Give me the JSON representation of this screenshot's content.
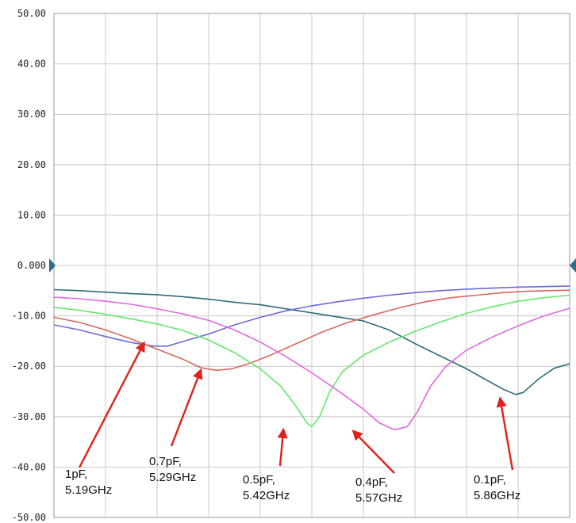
{
  "chart_data": {
    "type": "line",
    "ylim": [
      -50,
      50
    ],
    "xlim": [
      0,
      10
    ],
    "grid": true,
    "y_tick_labels": [
      "50.00",
      "40.00",
      "30.00",
      "20.00",
      "10.00",
      "0.000",
      "-10.00",
      "-20.00",
      "-30.00",
      "-40.00",
      "-50.00"
    ],
    "series": [
      {
        "color": "#2E6B7E",
        "points": [
          [
            0,
            -4.8
          ],
          [
            0.5,
            -5.0
          ],
          [
            1,
            -5.3
          ],
          [
            1.5,
            -5.6
          ],
          [
            2,
            -5.8
          ],
          [
            2.5,
            -6.2
          ],
          [
            3,
            -6.7
          ],
          [
            3.5,
            -7.3
          ],
          [
            4,
            -7.8
          ],
          [
            4.5,
            -8.6
          ],
          [
            5,
            -9.4
          ],
          [
            5.5,
            -10.2
          ],
          [
            6,
            -11.0
          ],
          [
            6.5,
            -12.8
          ],
          [
            7,
            -15.5
          ],
          [
            7.5,
            -18.0
          ],
          [
            8,
            -20.5
          ],
          [
            8.4,
            -22.8
          ],
          [
            8.7,
            -24.5
          ],
          [
            8.95,
            -25.6
          ],
          [
            9.1,
            -25.2
          ],
          [
            9.4,
            -22.5
          ],
          [
            9.7,
            -20.4
          ],
          [
            10,
            -19.5
          ]
        ]
      },
      {
        "color": "#6A6ADB",
        "points": [
          [
            0,
            -11.8
          ],
          [
            0.5,
            -12.8
          ],
          [
            1,
            -14.1
          ],
          [
            1.5,
            -15.3
          ],
          [
            1.95,
            -16.0
          ],
          [
            2.2,
            -16.0
          ],
          [
            2.5,
            -15.1
          ],
          [
            3,
            -13.6
          ],
          [
            3.5,
            -11.8
          ],
          [
            4,
            -10.3
          ],
          [
            4.5,
            -9.0
          ],
          [
            5,
            -8.0
          ],
          [
            5.5,
            -7.2
          ],
          [
            6,
            -6.5
          ],
          [
            6.5,
            -5.9
          ],
          [
            7,
            -5.4
          ],
          [
            7.5,
            -5.0
          ],
          [
            8,
            -4.7
          ],
          [
            8.5,
            -4.5
          ],
          [
            9,
            -4.3
          ],
          [
            9.5,
            -4.2
          ],
          [
            10,
            -4.1
          ]
        ]
      },
      {
        "color": "#D9675F",
        "points": [
          [
            0,
            -10.3
          ],
          [
            0.5,
            -11.3
          ],
          [
            1,
            -12.8
          ],
          [
            1.5,
            -14.6
          ],
          [
            2,
            -16.6
          ],
          [
            2.5,
            -18.6
          ],
          [
            2.85,
            -20.3
          ],
          [
            3.15,
            -20.8
          ],
          [
            3.45,
            -20.5
          ],
          [
            3.8,
            -19.4
          ],
          [
            4.2,
            -17.8
          ],
          [
            4.7,
            -15.5
          ],
          [
            5.2,
            -13.2
          ],
          [
            5.7,
            -11.3
          ],
          [
            6.2,
            -9.8
          ],
          [
            6.7,
            -8.4
          ],
          [
            7.2,
            -7.2
          ],
          [
            7.7,
            -6.4
          ],
          [
            8.2,
            -5.9
          ],
          [
            8.7,
            -5.4
          ],
          [
            9.2,
            -5.1
          ],
          [
            10,
            -4.9
          ]
        ]
      },
      {
        "color": "#66E56C",
        "points": [
          [
            0,
            -8.3
          ],
          [
            0.5,
            -8.9
          ],
          [
            1,
            -9.7
          ],
          [
            1.5,
            -10.6
          ],
          [
            2,
            -11.6
          ],
          [
            2.5,
            -12.9
          ],
          [
            3,
            -14.8
          ],
          [
            3.5,
            -17.3
          ],
          [
            4,
            -20.5
          ],
          [
            4.4,
            -24.0
          ],
          [
            4.7,
            -28.0
          ],
          [
            4.9,
            -31.2
          ],
          [
            5.0,
            -32.0
          ],
          [
            5.15,
            -30.0
          ],
          [
            5.35,
            -25.0
          ],
          [
            5.6,
            -21.0
          ],
          [
            6,
            -17.8
          ],
          [
            6.5,
            -15.2
          ],
          [
            7,
            -13.1
          ],
          [
            7.5,
            -11.2
          ],
          [
            8,
            -9.5
          ],
          [
            8.5,
            -8.2
          ],
          [
            9,
            -7.1
          ],
          [
            9.5,
            -6.4
          ],
          [
            10,
            -5.9
          ]
        ]
      },
      {
        "color": "#E168E0",
        "points": [
          [
            0,
            -6.3
          ],
          [
            0.5,
            -6.6
          ],
          [
            1,
            -7.1
          ],
          [
            1.5,
            -7.7
          ],
          [
            2,
            -8.6
          ],
          [
            2.5,
            -9.6
          ],
          [
            3,
            -10.9
          ],
          [
            3.5,
            -12.8
          ],
          [
            4,
            -15.2
          ],
          [
            4.5,
            -18.1
          ],
          [
            5,
            -21.3
          ],
          [
            5.5,
            -24.8
          ],
          [
            6,
            -28.5
          ],
          [
            6.3,
            -31.2
          ],
          [
            6.6,
            -32.6
          ],
          [
            6.85,
            -32.0
          ],
          [
            7.05,
            -29.0
          ],
          [
            7.3,
            -24.0
          ],
          [
            7.6,
            -20.0
          ],
          [
            8,
            -16.8
          ],
          [
            8.5,
            -14.2
          ],
          [
            9,
            -12.0
          ],
          [
            9.5,
            -10.0
          ],
          [
            10,
            -8.5
          ]
        ]
      }
    ],
    "annotations": [
      {
        "lines": [
          "1pF,",
          "5.19GHz"
        ],
        "target": [
          1.75,
          -15.3
        ]
      },
      {
        "lines": [
          "0.7pF,",
          "5.29GHz"
        ],
        "target": [
          2.85,
          -20.7
        ]
      },
      {
        "lines": [
          "0.5pF,",
          "5.42GHz"
        ],
        "target": [
          4.45,
          -32.5
        ]
      },
      {
        "lines": [
          "0.4pF,",
          "5.57GHz"
        ],
        "target": [
          5.8,
          -32.8
        ]
      },
      {
        "lines": [
          "0.1pF,",
          "5.86GHz"
        ],
        "target": [
          8.65,
          -26.3
        ]
      }
    ],
    "arrow_color": "#E0201B",
    "grid_color": "#C8C8C8",
    "marker_color": "#2E6B8C"
  }
}
